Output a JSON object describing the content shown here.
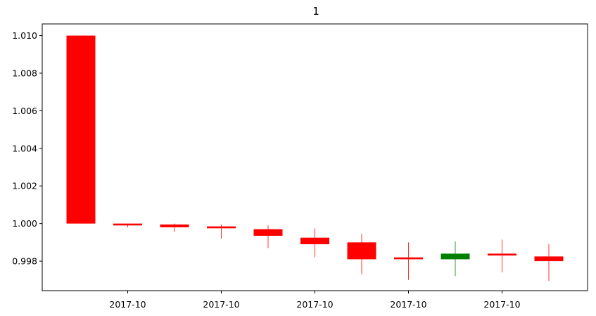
{
  "chart_data": {
    "type": "candlestick",
    "title": "1",
    "xlabel": "",
    "ylabel": "",
    "ylim": [
      0.99643,
      1.01062
    ],
    "yticks": [
      "1.010",
      "1.008",
      "1.006",
      "1.004",
      "1.002",
      "1.000",
      "0.998"
    ],
    "xtick_labels": [
      "2017-10",
      "2017-10",
      "2017-10",
      "2017-10",
      "2017-10"
    ],
    "grid": false,
    "colors": {
      "up": "#008000",
      "down": "#ff0000"
    },
    "candles": [
      {
        "open": 1.01,
        "close": 1.0,
        "high": 1.01,
        "low": 1.0,
        "dir": "down"
      },
      {
        "open": 1.0,
        "close": 0.9999,
        "high": 1.0,
        "low": 0.9998,
        "dir": "down"
      },
      {
        "open": 0.99995,
        "close": 0.9998,
        "high": 1.0,
        "low": 0.99955,
        "dir": "down"
      },
      {
        "open": 0.99985,
        "close": 0.99975,
        "high": 0.99995,
        "low": 0.9992,
        "dir": "down"
      },
      {
        "open": 0.9997,
        "close": 0.99935,
        "high": 0.9999,
        "low": 0.9987,
        "dir": "down"
      },
      {
        "open": 0.99925,
        "close": 0.9989,
        "high": 0.99975,
        "low": 0.9982,
        "dir": "down"
      },
      {
        "open": 0.999,
        "close": 0.9981,
        "high": 0.99945,
        "low": 0.9973,
        "dir": "down"
      },
      {
        "open": 0.9982,
        "close": 0.9981,
        "high": 0.999,
        "low": 0.997,
        "dir": "down"
      },
      {
        "open": 0.9981,
        "close": 0.9984,
        "high": 0.99905,
        "low": 0.9972,
        "dir": "up"
      },
      {
        "open": 0.9984,
        "close": 0.9983,
        "high": 0.99915,
        "low": 0.9974,
        "dir": "down"
      },
      {
        "open": 0.99825,
        "close": 0.998,
        "high": 0.9989,
        "low": 0.99695,
        "dir": "down"
      }
    ]
  }
}
